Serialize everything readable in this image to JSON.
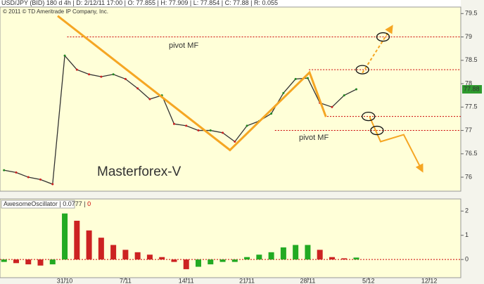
{
  "chart_data": [
    {
      "type": "line",
      "title": "USD/JPY (BID) 180 d 4h",
      "info": [
        "D: 2/12/11 17:00",
        "O: 77.855",
        "H: 77.909",
        "L: 77.854",
        "C: 77.88",
        "R: 0.055"
      ],
      "subtitle": "© 2011 © TD Ameritrade IP Company, Inc.",
      "annotations": [
        "pivot MF",
        "pivot MF",
        "Masterforex-V"
      ],
      "x": [
        -5,
        -4,
        -3,
        -2,
        -1,
        0,
        1,
        2,
        3,
        4,
        5,
        6,
        7,
        8,
        9,
        10,
        11,
        12,
        13,
        14,
        15,
        16,
        17,
        18,
        19,
        20,
        21,
        22,
        23,
        24
      ],
      "values": [
        76.15,
        76.1,
        76.0,
        75.95,
        75.85,
        78.6,
        78.3,
        78.2,
        78.15,
        78.2,
        78.1,
        77.9,
        77.67,
        77.75,
        77.14,
        77.1,
        77.0,
        77.0,
        76.95,
        76.76,
        77.1,
        77.2,
        77.36,
        77.8,
        78.1,
        78.12,
        77.59,
        77.5,
        77.75,
        77.88
      ],
      "color": "#333333",
      "xlim": [
        -5.33,
        32.6
      ],
      "ylim": [
        75.7,
        79.64
      ],
      "yticks": [
        76,
        76.5,
        77,
        77.5,
        78,
        78.5,
        79,
        79.5
      ],
      "levels": {
        "values": [
          79,
          78.3,
          77.3,
          77
        ],
        "x_start": [
          0.2,
          20.1,
          21.6,
          17.3
        ],
        "color": "#cc0000"
      },
      "pattern": {
        "x": [
          -0.58,
          13.6,
          20.15,
          21.5
        ],
        "y": [
          79.45,
          76.58,
          78.24,
          77.29
        ],
        "color": "#f5a623"
      },
      "forecast_up": {
        "x": [
          24.5,
          26.9
        ],
        "y": [
          78.23,
          79.21
        ]
      },
      "forecast_down": {
        "x": [
          25.1,
          26.0,
          27.9,
          29.4
        ],
        "y": [
          77.29,
          76.76,
          76.91,
          76.15
        ]
      },
      "markers": {
        "x": [
          26.2,
          24.5,
          25.0,
          25.7
        ],
        "y": [
          79.0,
          78.3,
          77.3,
          77.0
        ]
      }
    },
    {
      "type": "bar",
      "title": "AwesomeOscillator",
      "info": [
        "0.0777",
        "0"
      ],
      "x": [
        -5,
        -4,
        -3,
        -2,
        -1,
        0,
        1,
        2,
        3,
        4,
        5,
        6,
        7,
        8,
        9,
        10,
        11,
        12,
        13,
        14,
        15,
        16,
        17,
        18,
        19,
        20,
        21,
        22,
        23,
        24
      ],
      "values": [
        -0.1,
        -0.15,
        -0.2,
        -0.25,
        -0.2,
        1.9,
        1.6,
        1.2,
        0.9,
        0.6,
        0.4,
        0.3,
        0.2,
        0.1,
        -0.1,
        -0.4,
        -0.3,
        -0.2,
        -0.1,
        -0.1,
        0.1,
        0.2,
        0.3,
        0.5,
        0.6,
        0.6,
        0.4,
        0.1,
        0.05,
        0.08
      ],
      "up_color": "#22aa22",
      "down_color": "#cc2222",
      "xlim": [
        -5.33,
        32.6
      ],
      "ylim": [
        -0.75,
        2.5
      ],
      "yticks": [
        0,
        1,
        2
      ],
      "xticks": [
        {
          "value": 0,
          "label": "31/10"
        },
        {
          "value": 5,
          "label": "7/11"
        },
        {
          "value": 10,
          "label": "14/11"
        },
        {
          "value": 15,
          "label": "21/11"
        },
        {
          "value": 20,
          "label": "28/11"
        },
        {
          "value": 25,
          "label": "5/12"
        },
        {
          "value": 30,
          "label": "12/12"
        }
      ]
    }
  ]
}
